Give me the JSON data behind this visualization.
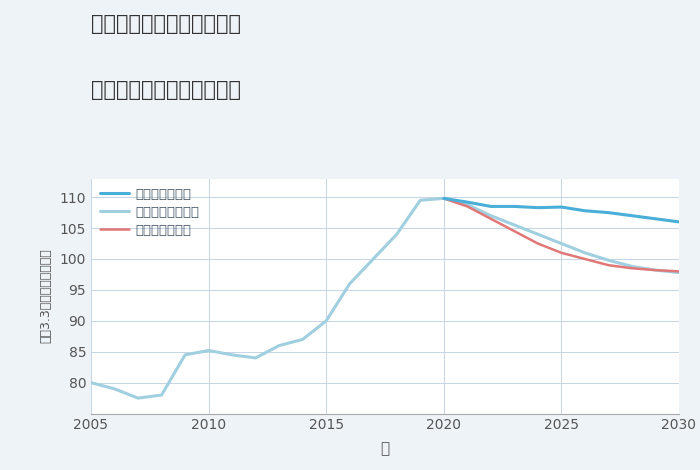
{
  "title_line1": "兵庫県姫路市香寺町溝口の",
  "title_line2": "中古マンションの価格推移",
  "xlabel": "年",
  "ylabel": "平（3.3㎡）単価（万円）",
  "xlim": [
    2005,
    2030
  ],
  "ylim": [
    75,
    113
  ],
  "yticks": [
    80,
    85,
    90,
    95,
    100,
    105,
    110
  ],
  "xticks": [
    2005,
    2010,
    2015,
    2020,
    2025,
    2030
  ],
  "bg_color": "#eef3f8",
  "plot_bg_color": "#ffffff",
  "grid_color": "#c5d5e5",
  "legend_labels": [
    "グッドシナリオ",
    "バッドシナリオ",
    "ノーマルシナリオ"
  ],
  "good_color": "#4aafd8",
  "bad_color": "#e07878",
  "normal_color": "#a0cfe0",
  "years_historical": [
    2005,
    2006,
    2007,
    2008,
    2009,
    2010,
    2011,
    2012,
    2013,
    2014,
    2015,
    2016,
    2017,
    2018,
    2019,
    2020
  ],
  "values_historical": [
    80.0,
    79.0,
    77.5,
    78.0,
    84.5,
    85.2,
    84.5,
    84.0,
    86.0,
    87.0,
    90.0,
    96.0,
    100.0,
    104.0,
    109.5,
    109.8
  ],
  "years_future": [
    2020,
    2021,
    2022,
    2023,
    2024,
    2025,
    2026,
    2027,
    2028,
    2029,
    2030
  ],
  "good_values": [
    109.8,
    109.2,
    108.5,
    108.5,
    108.3,
    108.4,
    107.8,
    107.5,
    107.0,
    106.5,
    106.0
  ],
  "bad_values": [
    109.8,
    108.5,
    106.5,
    104.5,
    102.5,
    101.0,
    100.0,
    99.0,
    98.5,
    98.2,
    98.0
  ],
  "normal_values": [
    109.8,
    108.8,
    107.0,
    105.5,
    104.0,
    102.5,
    101.0,
    99.8,
    98.8,
    98.2,
    97.8
  ]
}
